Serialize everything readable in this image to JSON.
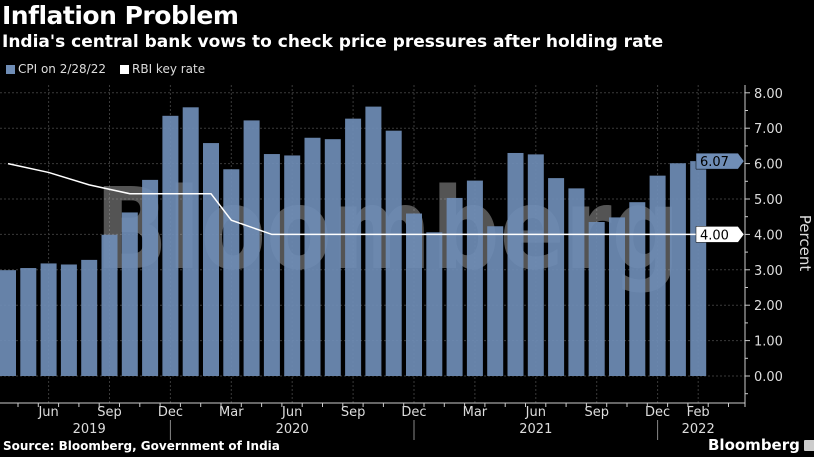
{
  "header": {
    "title": "Inflation Problem",
    "subtitle": "India's central bank vows to check price pressures after holding rate"
  },
  "footer": {
    "source": "Source: Bloomberg, Government of India",
    "brand": "Bloomberg"
  },
  "watermark": "Bloomberg",
  "chart_data": {
    "type": "bar",
    "title": "Inflation Problem",
    "subtitle": "India's central bank vows to check price pressures after holding rate",
    "ylabel": "Percent",
    "ylim": [
      -0.8,
      8.3
    ],
    "yticks": [
      "0.00",
      "1.00",
      "2.00",
      "3.00",
      "4.00",
      "5.00",
      "6.00",
      "7.00",
      "8.00"
    ],
    "grid": true,
    "legend_position": "top-left",
    "x_tick_labels": [
      {
        "label": "Jun",
        "month": "2019-06"
      },
      {
        "label": "Sep",
        "month": "2019-09"
      },
      {
        "label": "Dec",
        "month": "2019-12"
      },
      {
        "label": "Mar",
        "month": "2020-03"
      },
      {
        "label": "Jun",
        "month": "2020-06"
      },
      {
        "label": "Sep",
        "month": "2020-09"
      },
      {
        "label": "Dec",
        "month": "2020-12"
      },
      {
        "label": "Mar",
        "month": "2021-03"
      },
      {
        "label": "Jun",
        "month": "2021-06"
      },
      {
        "label": "Sep",
        "month": "2021-09"
      },
      {
        "label": "Dec",
        "month": "2021-12"
      },
      {
        "label": "Feb",
        "month": "2022-02"
      }
    ],
    "year_labels": [
      {
        "label": "2019",
        "month": "2019-08"
      },
      {
        "label": "2020",
        "month": "2020-06"
      },
      {
        "label": "2021",
        "month": "2021-06"
      },
      {
        "label": "2022",
        "month": "2022-02"
      }
    ],
    "series": [
      {
        "name": "CPI on 2/28/22",
        "type": "bar",
        "color": "#6f8db6",
        "x": [
          "2019-04",
          "2019-05",
          "2019-06",
          "2019-07",
          "2019-08",
          "2019-09",
          "2019-10",
          "2019-11",
          "2019-12",
          "2020-01",
          "2020-02",
          "2020-03",
          "2020-04",
          "2020-05",
          "2020-06",
          "2020-07",
          "2020-08",
          "2020-09",
          "2020-10",
          "2020-11",
          "2020-12",
          "2021-01",
          "2021-02",
          "2021-03",
          "2021-04",
          "2021-05",
          "2021-06",
          "2021-07",
          "2021-08",
          "2021-09",
          "2021-10",
          "2021-11",
          "2021-12",
          "2022-01",
          "2022-02"
        ],
        "values": [
          2.99,
          3.05,
          3.18,
          3.15,
          3.28,
          3.99,
          4.62,
          5.54,
          7.35,
          7.59,
          6.58,
          5.84,
          7.22,
          6.27,
          6.23,
          6.73,
          6.69,
          7.27,
          7.61,
          6.93,
          4.59,
          4.06,
          5.03,
          5.52,
          4.23,
          6.3,
          6.26,
          5.59,
          5.3,
          4.35,
          4.48,
          4.91,
          5.66,
          6.01,
          6.07
        ],
        "last_label": "6.07"
      },
      {
        "name": "RBI key rate",
        "type": "line",
        "color": "#ffffff",
        "x": [
          "2019-04",
          "2019-06",
          "2019-08",
          "2019-10",
          "2020-02",
          "2020-03",
          "2020-05",
          "2022-03"
        ],
        "values": [
          6.0,
          5.75,
          5.4,
          5.15,
          5.15,
          4.4,
          4.0,
          4.0
        ],
        "last_label": "4.00"
      }
    ]
  }
}
